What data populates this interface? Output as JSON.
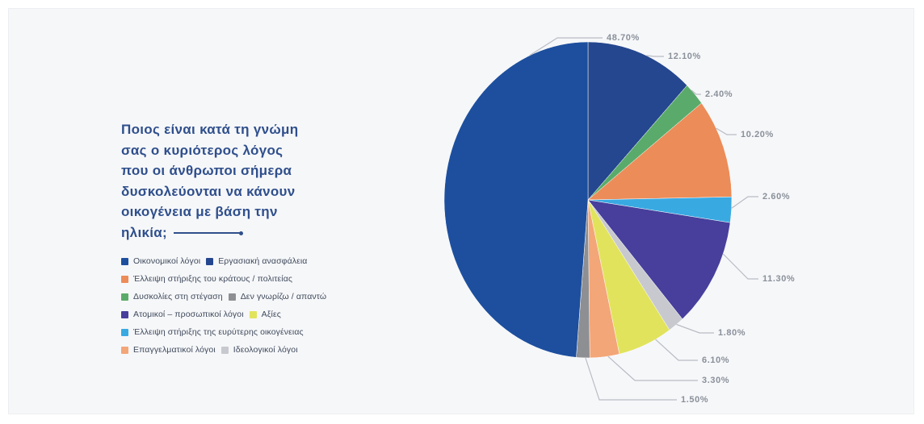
{
  "chart_data": {
    "type": "pie",
    "title": "Ποιος είναι κατά τη γνώμη\nσας ο κυριότερος λόγος\nπου οι άνθρωποι σήμερα\nδυσκολεύονται να κάνουν\nοικογένεια με βάση την\nηλικία;",
    "legend_position": "left",
    "categories": [
      {
        "label": "Οικονομικοί λόγοι",
        "value": 48.7,
        "value_label": "48.70%",
        "color": "#1d4f9e"
      },
      {
        "label": "Εργασιακή ανασφάλεια",
        "value": 12.1,
        "value_label": "12.10%",
        "color": "#25478f"
      },
      {
        "label": "Έλλειψη στήριξης του κράτους / πολιτείας",
        "value": 10.2,
        "value_label": "10.20%",
        "color": "#ec8c58"
      },
      {
        "label": "Δυσκολίες στη στέγαση",
        "value": 2.4,
        "value_label": "2.40%",
        "color": "#5aab6b"
      },
      {
        "label": "Δεν γνωρίζω / απαντώ",
        "value": 1.5,
        "value_label": "1.50%",
        "color": "#8e8f93"
      },
      {
        "label": "Ατομικοί – προσωπικοί λόγοι",
        "value": 11.3,
        "value_label": "11.30%",
        "color": "#473f9b"
      },
      {
        "label": "Αξίες",
        "value": 6.1,
        "value_label": "6.10%",
        "color": "#e1e35c"
      },
      {
        "label": "Έλλειψη στήριξης της ευρύτερης οικογένειας",
        "value": 2.6,
        "value_label": "2.60%",
        "color": "#39a9e2"
      },
      {
        "label": "Επαγγελματικοί λόγοι",
        "value": 3.3,
        "value_label": "3.30%",
        "color": "#f3a678"
      },
      {
        "label": "Ιδεολογικοί λόγοι",
        "value": 1.8,
        "value_label": "1.80%",
        "color": "#c8c9ce"
      }
    ]
  },
  "colors": {
    "background": "#f6f7f9",
    "title": "#2f4f8c",
    "leader_lines": "#b8bcc4",
    "value_labels": "#8a909a"
  }
}
